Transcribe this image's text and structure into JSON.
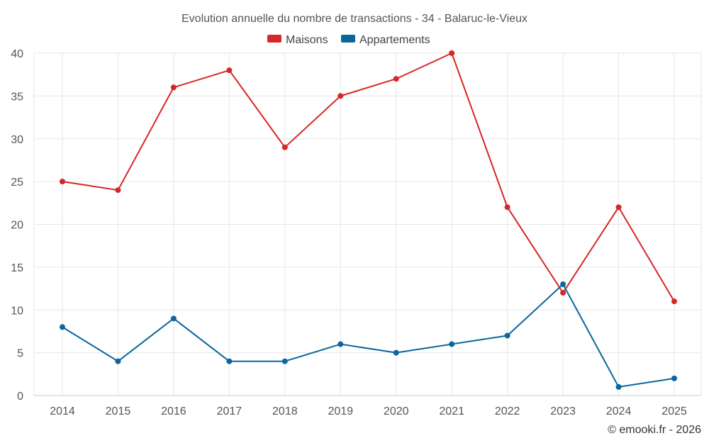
{
  "chart_data": {
    "type": "line",
    "title": "Evolution annuelle du nombre de transactions - 34 - Balaruc-le-Vieux",
    "categories": [
      "2014",
      "2015",
      "2016",
      "2017",
      "2018",
      "2019",
      "2020",
      "2021",
      "2022",
      "2023",
      "2024",
      "2025"
    ],
    "series": [
      {
        "name": "Maisons",
        "color": "#d62728",
        "values": [
          25,
          24,
          36,
          38,
          29,
          35,
          37,
          40,
          22,
          12,
          22,
          11
        ]
      },
      {
        "name": "Appartements",
        "color": "#0b669e",
        "values": [
          8,
          4,
          9,
          4,
          4,
          6,
          5,
          6,
          7,
          13,
          1,
          2
        ]
      }
    ],
    "yticks": [
      "0",
      "5",
      "10",
      "15",
      "20",
      "25",
      "30",
      "35",
      "40"
    ],
    "ylim": [
      0,
      40
    ],
    "xlabel": "",
    "ylabel": "",
    "grid": true,
    "legend": "top-center"
  },
  "credit": "© emooki.fr - 2026"
}
